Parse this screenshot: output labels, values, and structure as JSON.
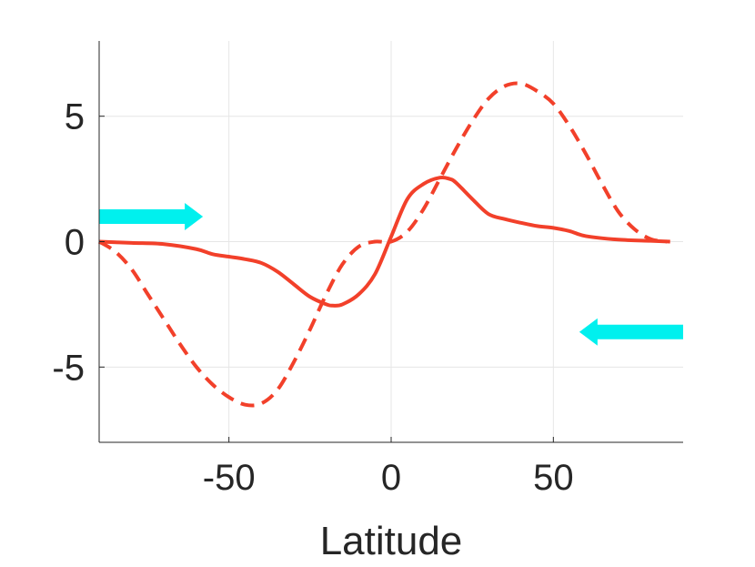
{
  "chart_data": {
    "type": "line",
    "title": "",
    "xlabel": "Latitude",
    "ylabel": "",
    "xlim": [
      -90,
      90
    ],
    "ylim": [
      -8,
      8
    ],
    "xticks": [
      -50,
      0,
      50
    ],
    "xtick_labels": [
      "-50",
      "0",
      "50"
    ],
    "yticks": [
      -5,
      0,
      5
    ],
    "ytick_labels": [
      "-5",
      "0",
      "5"
    ],
    "grid": true,
    "legend": "none",
    "series": [
      {
        "style": "solid",
        "color": "#f2402a",
        "x": [
          -90,
          -80,
          -70,
          -60,
          -55,
          -50,
          -45,
          -40,
          -35,
          -30,
          -25,
          -20,
          -18,
          -15,
          -10,
          -5,
          0,
          5,
          10,
          15,
          18,
          20,
          25,
          30,
          35,
          40,
          45,
          50,
          55,
          60,
          70,
          80,
          86
        ],
        "y": [
          0,
          -0.05,
          -0.1,
          -0.3,
          -0.5,
          -0.6,
          -0.7,
          -0.85,
          -1.2,
          -1.7,
          -2.2,
          -2.5,
          -2.55,
          -2.5,
          -2.1,
          -1.3,
          0.2,
          1.7,
          2.3,
          2.55,
          2.5,
          2.35,
          1.7,
          1.1,
          0.9,
          0.75,
          0.62,
          0.55,
          0.42,
          0.22,
          0.08,
          0.03,
          0
        ]
      },
      {
        "style": "dashed",
        "color": "#f2402a",
        "x": [
          -90,
          -85,
          -80,
          -75,
          -70,
          -65,
          -60,
          -55,
          -50,
          -45,
          -40,
          -35,
          -30,
          -25,
          -20,
          -15,
          -10,
          -5,
          0,
          5,
          10,
          15,
          20,
          25,
          30,
          35,
          40,
          45,
          50,
          55,
          60,
          65,
          70,
          75,
          80,
          85
        ],
        "y": [
          0,
          -0.4,
          -1.1,
          -2.1,
          -3.1,
          -4.1,
          -5.0,
          -5.7,
          -6.2,
          -6.5,
          -6.45,
          -5.9,
          -4.8,
          -3.5,
          -2.1,
          -0.9,
          -0.2,
          0,
          0,
          0.4,
          1.3,
          2.5,
          3.7,
          4.8,
          5.7,
          6.2,
          6.3,
          6.0,
          5.5,
          4.6,
          3.5,
          2.3,
          1.2,
          0.5,
          0.1,
          0
        ]
      }
    ],
    "annotations": [
      {
        "type": "arrow",
        "color": "#00f0ee",
        "direction": "right",
        "x_start": -90,
        "x_end": -58,
        "y": 1.0
      },
      {
        "type": "arrow",
        "color": "#00f0ee",
        "direction": "left",
        "x_start": 90,
        "x_end": 58,
        "y": -3.6
      }
    ]
  }
}
